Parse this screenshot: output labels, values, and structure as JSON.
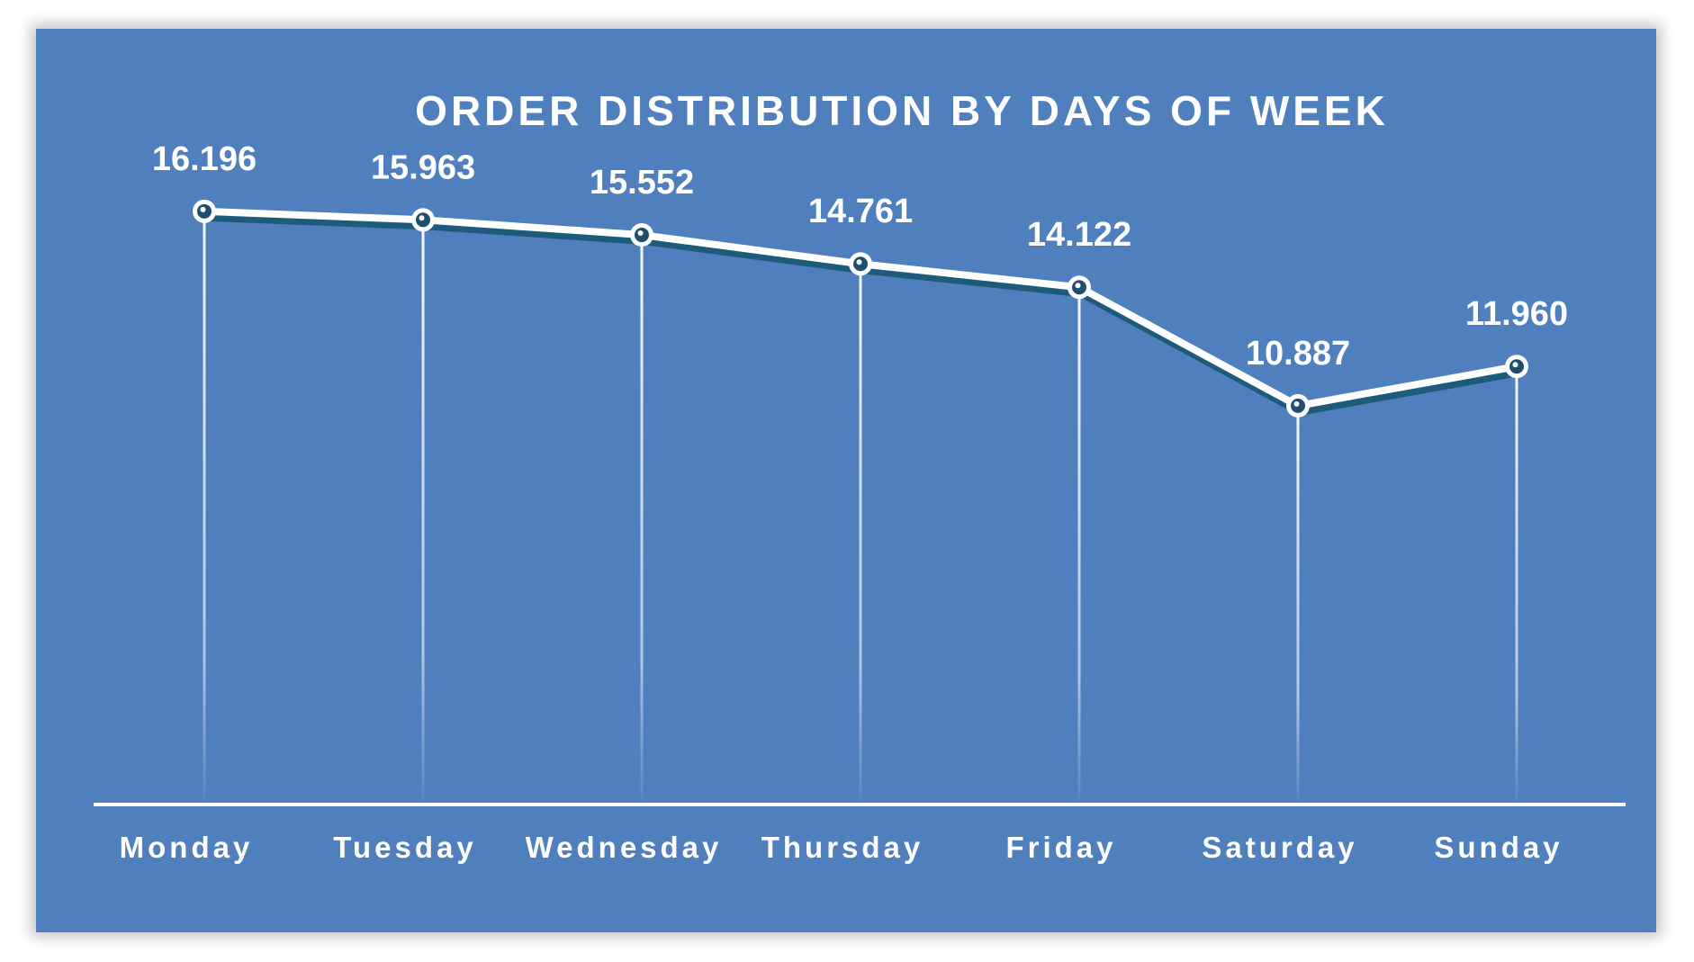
{
  "chart_data": {
    "type": "line",
    "title": "ORDER DISTRIBUTION BY DAYS OF WEEK",
    "categories": [
      "Monday",
      "Tuesday",
      "Wednesday",
      "Thursday",
      "Friday",
      "Saturday",
      "Sunday"
    ],
    "values": [
      16.196,
      15.963,
      15.552,
      14.761,
      14.122,
      10.887,
      11.96
    ],
    "value_labels": [
      "16.196",
      "15.963",
      "15.552",
      "14.761",
      "14.122",
      "10.887",
      "11.960"
    ],
    "ylim": [
      0,
      20
    ],
    "grid": false,
    "legend": "none",
    "colors": {
      "background": "#4f7fbd",
      "line": "#ffffff",
      "line_shadow": "#1e5a7a",
      "marker_center": "#1f4e6e",
      "text": "#ffffff"
    }
  }
}
